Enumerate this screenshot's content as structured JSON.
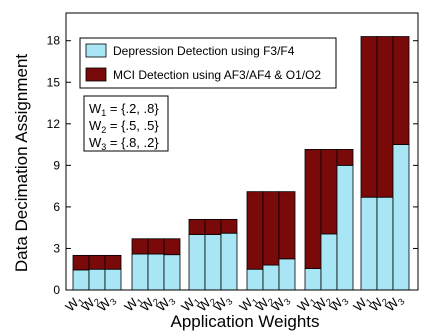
{
  "chart_data": {
    "type": "bar",
    "stacked": true,
    "xlabel": "Application Weights",
    "ylabel": "Data Decimation Assignment",
    "ylim": [
      0,
      20
    ],
    "yticks": [
      0,
      3,
      6,
      9,
      12,
      15,
      18
    ],
    "legend_position": "top-left",
    "weights_box": [
      "W1 = {.2, .8}",
      "W2 = {.5, .5}",
      "W3 = {.8, .2}"
    ],
    "groups": [
      {
        "labels": [
          "W1",
          "W2",
          "W3"
        ],
        "depression": [
          1.45,
          1.5,
          1.5
        ],
        "mci": [
          1.05,
          1.0,
          1.0
        ]
      },
      {
        "labels": [
          "W1",
          "W2",
          "W3"
        ],
        "depression": [
          2.6,
          2.6,
          2.55
        ],
        "mci": [
          1.1,
          1.1,
          1.15
        ]
      },
      {
        "labels": [
          "W1",
          "W2",
          "W3"
        ],
        "depression": [
          4.0,
          4.0,
          4.1
        ],
        "mci": [
          1.1,
          1.1,
          1.0
        ]
      },
      {
        "labels": [
          "W1",
          "W2",
          "W3"
        ],
        "depression": [
          1.5,
          1.8,
          2.25
        ],
        "mci": [
          5.6,
          5.3,
          4.85
        ]
      },
      {
        "labels": [
          "W1",
          "W2",
          "W3"
        ],
        "depression": [
          1.55,
          4.05,
          9.0
        ],
        "mci": [
          8.6,
          6.1,
          1.15
        ]
      },
      {
        "labels": [
          "W1",
          "W2",
          "W3"
        ],
        "depression": [
          6.7,
          6.7,
          10.5
        ],
        "mci": [
          11.6,
          11.6,
          7.8
        ]
      }
    ],
    "series": [
      {
        "name": "Depression Detection using F3/F4",
        "color": "#a8e6f5"
      },
      {
        "name": "MCI Detection using AF3/AF4 & O1/O2",
        "color": "#7a0a0a"
      }
    ]
  }
}
